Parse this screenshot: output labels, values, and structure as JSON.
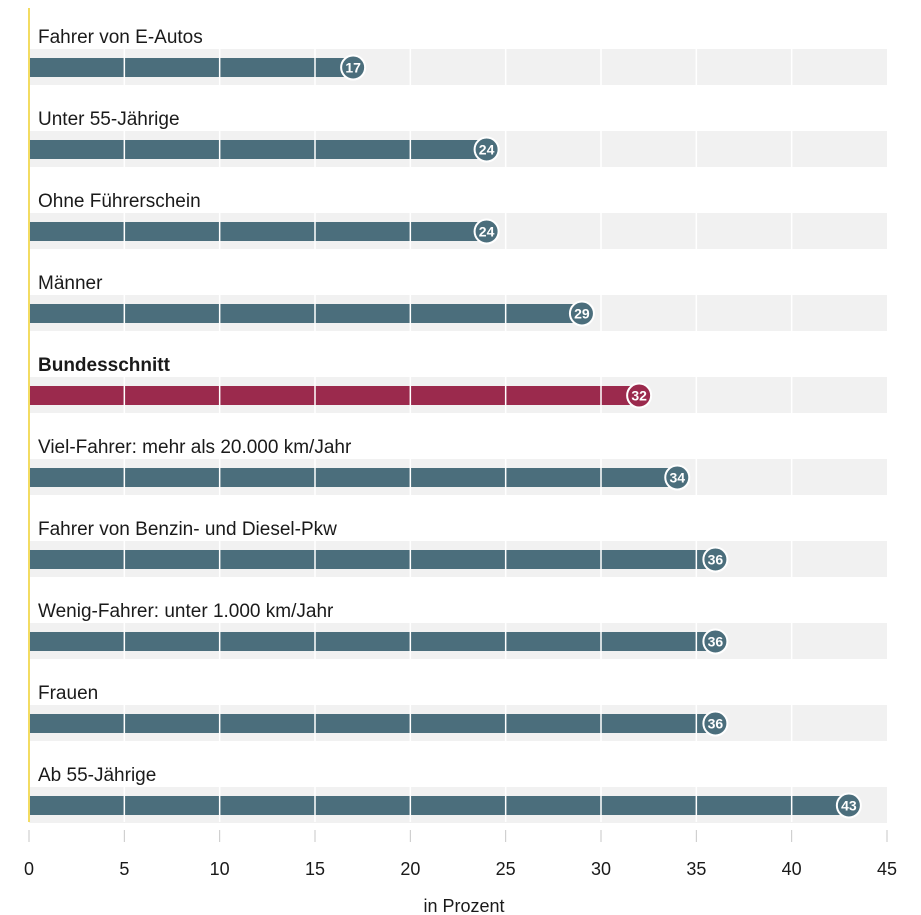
{
  "chart_data": {
    "type": "bar",
    "orientation": "horizontal",
    "categories": [
      "Fahrer von E-Autos",
      "Unter 55-Jährige",
      "Ohne Führerschein",
      "Männer",
      "Bundesschnitt",
      "Viel-Fahrer: mehr als 20.000 km/Jahr",
      "Fahrer von Benzin- und Diesel-Pkw",
      "Wenig-Fahrer: unter 1.000 km/Jahr",
      "Frauen",
      "Ab 55-Jährige"
    ],
    "values": [
      17,
      24,
      24,
      29,
      32,
      34,
      36,
      36,
      36,
      43
    ],
    "highlight": "Bundesschnitt",
    "xlabel": "in Prozent",
    "ylabel": "",
    "xlim": [
      0,
      45
    ],
    "xticks": [
      0,
      5,
      10,
      15,
      20,
      25,
      30,
      35,
      40,
      45
    ],
    "grid": true,
    "data_labels": true,
    "colors": {
      "bar": "#4b6e7c",
      "highlight_bar": "#9b2a4d",
      "track": "#f1f1f1",
      "gridline": "#ffffff",
      "axis_line": "#f3dc62",
      "tick": "#c7c7c7",
      "text": "#1a1a1a"
    }
  }
}
